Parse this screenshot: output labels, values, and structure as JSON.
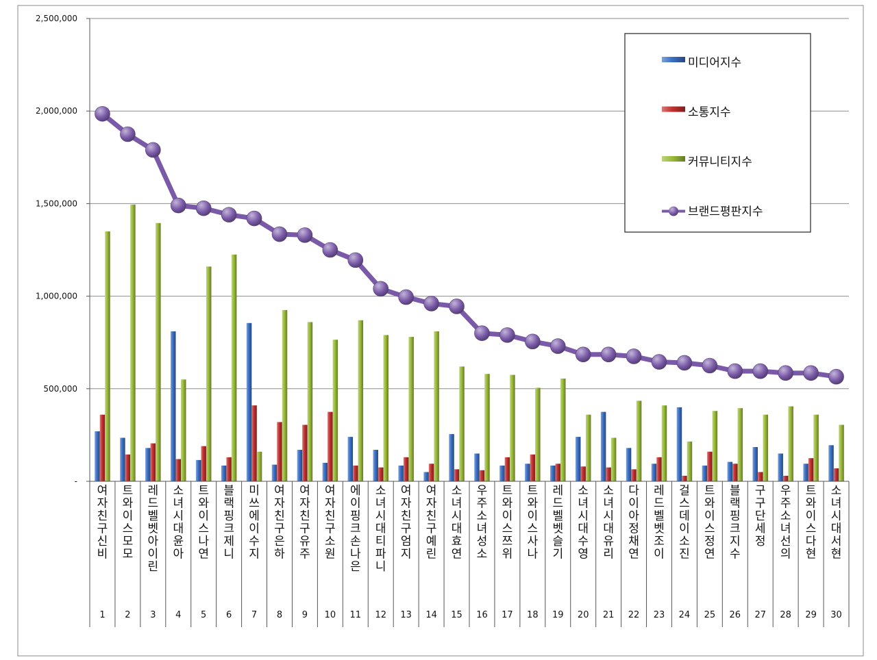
{
  "chart_data": {
    "type": "bar",
    "ylim": [
      0,
      2500000
    ],
    "yticks": [
      {
        "value": 0,
        "label": "-"
      },
      {
        "value": 500000,
        "label": "500,000"
      },
      {
        "value": 1000000,
        "label": "1,000,000"
      },
      {
        "value": 1500000,
        "label": "1,500,000"
      },
      {
        "value": 2000000,
        "label": "2,000,000"
      },
      {
        "value": 2500000,
        "label": "2,500,000"
      }
    ],
    "grid": true,
    "legend_position": "top-right",
    "categories": [
      "1",
      "2",
      "3",
      "4",
      "5",
      "6",
      "7",
      "8",
      "9",
      "10",
      "11",
      "12",
      "13",
      "14",
      "15",
      "16",
      "17",
      "18",
      "19",
      "20",
      "21",
      "22",
      "23",
      "24",
      "25",
      "26",
      "27",
      "28",
      "29",
      "30"
    ],
    "names": [
      "여자친구신비",
      "트와이스모모",
      "레드벨벳아이린",
      "소녀시대윤아",
      "트와이스나연",
      "블랙핑크제니",
      "미쓰에이수지",
      "여자친구은하",
      "여자친구유주",
      "여자친구소원",
      "에이핑크손나은",
      "소녀시대티파니",
      "여자친구엄지",
      "여자친구예린",
      "소녀시대효연",
      "우주소녀성소",
      "트와이스쯔위",
      "트와이스사나",
      "레드벨벳슬기",
      "소녀시대수영",
      "소녀시대유리",
      "다이아정채연",
      "레드벨벳조이",
      "걸스데이소진",
      "트와이스정연",
      "블랙핑크지수",
      "구구단세정",
      "우주소녀선의",
      "트와이스다현",
      "소녀시대서현"
    ],
    "series": [
      {
        "name": "미디어지수",
        "type": "bar",
        "color": "#3a6fc4",
        "values": [
          270000,
          235000,
          180000,
          810000,
          115000,
          85000,
          855000,
          90000,
          170000,
          100000,
          240000,
          170000,
          85000,
          50000,
          255000,
          150000,
          85000,
          95000,
          85000,
          240000,
          375000,
          180000,
          95000,
          400000,
          85000,
          105000,
          185000,
          150000,
          95000,
          195000
        ]
      },
      {
        "name": "소통지수",
        "type": "bar",
        "color": "#c0302e",
        "values": [
          360000,
          145000,
          205000,
          120000,
          190000,
          130000,
          410000,
          320000,
          305000,
          375000,
          85000,
          75000,
          130000,
          95000,
          65000,
          60000,
          130000,
          145000,
          95000,
          80000,
          75000,
          65000,
          130000,
          30000,
          160000,
          95000,
          50000,
          30000,
          125000,
          70000
        ]
      },
      {
        "name": "커뮤니티지수",
        "type": "bar",
        "color": "#9bbb3a",
        "values": [
          1350000,
          1495000,
          1395000,
          550000,
          1160000,
          1225000,
          160000,
          925000,
          860000,
          765000,
          870000,
          790000,
          780000,
          810000,
          620000,
          580000,
          575000,
          505000,
          555000,
          360000,
          235000,
          435000,
          410000,
          215000,
          380000,
          395000,
          360000,
          405000,
          360000,
          305000
        ]
      },
      {
        "name": "브랜드평판지수",
        "type": "line",
        "color": "#7a5aa8",
        "values": [
          1985000,
          1875000,
          1790000,
          1490000,
          1475000,
          1440000,
          1420000,
          1335000,
          1330000,
          1250000,
          1195000,
          1040000,
          995000,
          960000,
          945000,
          800000,
          790000,
          755000,
          730000,
          685000,
          685000,
          675000,
          645000,
          640000,
          625000,
          595000,
          595000,
          585000,
          585000,
          565000
        ]
      }
    ]
  }
}
